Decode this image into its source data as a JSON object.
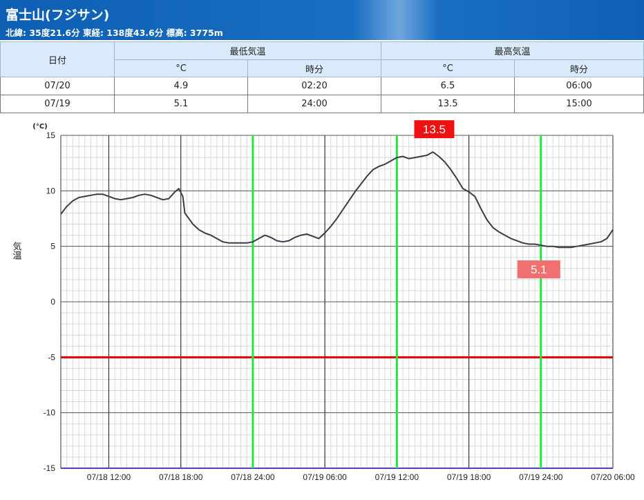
{
  "header": {
    "title": "富士山(フジサン)",
    "subtitle": "北緯: 35度21.6分 東経: 138度43.6分 標高: 3775m"
  },
  "table": {
    "date_header": "日付",
    "min_header": "最低気温",
    "max_header": "最高気温",
    "unit_c": "°C",
    "unit_time": "時分",
    "rows": [
      {
        "date": "07/20",
        "min_c": "4.9",
        "min_time": "02:20",
        "max_c": "6.5",
        "max_time": "06:00"
      },
      {
        "date": "07/19",
        "min_c": "5.1",
        "min_time": "24:00",
        "max_c": "13.5",
        "max_time": "15:00"
      }
    ]
  },
  "chart_data": {
    "type": "line",
    "ylabel": "気温",
    "yunit": "(°C)",
    "ylim": [
      -15,
      15
    ],
    "y_ticks": [
      15,
      10,
      5,
      0,
      -5,
      -10,
      -15
    ],
    "xlim": [
      "07/18 08:00",
      "07/20 06:00"
    ],
    "x_ticks": [
      "07/18 12:00",
      "07/18 18:00",
      "07/18 24:00",
      "07/19 06:00",
      "07/19 12:00",
      "07/19 18:00",
      "07/19 24:00",
      "07/20 06:00"
    ],
    "day_marker_lines": [
      "07/18 24:00",
      "07/19 12:00",
      "07/19 24:00"
    ],
    "reference_line": {
      "y": -5,
      "color": "#e00000"
    },
    "bottom_line_color": "#4a3ae0",
    "marker_line_color": "#22e63a",
    "annotations": [
      {
        "label": "13.5",
        "x": "07/19 15:00",
        "y": 13.5,
        "color": "#ee1111"
      },
      {
        "label": "5.1",
        "x": "07/19 24:00",
        "y": 5.1,
        "color": "#f07070"
      }
    ],
    "series": [
      {
        "color": "#3a3a4a",
        "points": [
          [
            "07/18 08:00",
            7.9
          ],
          [
            "07/18 08:30",
            8.6
          ],
          [
            "07/18 09:00",
            9.1
          ],
          [
            "07/18 09:30",
            9.4
          ],
          [
            "07/18 10:00",
            9.5
          ],
          [
            "07/18 10:30",
            9.6
          ],
          [
            "07/18 11:00",
            9.7
          ],
          [
            "07/18 11:30",
            9.7
          ],
          [
            "07/18 12:00",
            9.5
          ],
          [
            "07/18 12:30",
            9.3
          ],
          [
            "07/18 13:00",
            9.2
          ],
          [
            "07/18 13:30",
            9.3
          ],
          [
            "07/18 14:00",
            9.4
          ],
          [
            "07/18 14:30",
            9.6
          ],
          [
            "07/18 15:00",
            9.7
          ],
          [
            "07/18 15:30",
            9.6
          ],
          [
            "07/18 16:00",
            9.4
          ],
          [
            "07/18 16:30",
            9.2
          ],
          [
            "07/18 17:00",
            9.3
          ],
          [
            "07/18 17:30",
            9.9
          ],
          [
            "07/18 17:50",
            10.2
          ],
          [
            "07/18 18:10",
            9.5
          ],
          [
            "07/18 18:20",
            8.0
          ],
          [
            "07/18 19:00",
            7.0
          ],
          [
            "07/18 19:30",
            6.5
          ],
          [
            "07/18 20:00",
            6.2
          ],
          [
            "07/18 20:30",
            6.0
          ],
          [
            "07/18 21:00",
            5.7
          ],
          [
            "07/18 21:30",
            5.4
          ],
          [
            "07/18 22:00",
            5.3
          ],
          [
            "07/18 22:30",
            5.3
          ],
          [
            "07/18 23:00",
            5.3
          ],
          [
            "07/18 23:30",
            5.3
          ],
          [
            "07/19 00:00",
            5.4
          ],
          [
            "07/19 00:30",
            5.7
          ],
          [
            "07/19 01:00",
            6.0
          ],
          [
            "07/19 01:30",
            5.8
          ],
          [
            "07/19 02:00",
            5.5
          ],
          [
            "07/19 02:30",
            5.4
          ],
          [
            "07/19 03:00",
            5.5
          ],
          [
            "07/19 03:30",
            5.8
          ],
          [
            "07/19 04:00",
            6.0
          ],
          [
            "07/19 04:30",
            6.1
          ],
          [
            "07/19 05:00",
            5.9
          ],
          [
            "07/19 05:30",
            5.7
          ],
          [
            "07/19 06:00",
            6.2
          ],
          [
            "07/19 06:30",
            6.8
          ],
          [
            "07/19 07:00",
            7.5
          ],
          [
            "07/19 07:30",
            8.3
          ],
          [
            "07/19 08:00",
            9.1
          ],
          [
            "07/19 08:30",
            9.9
          ],
          [
            "07/19 09:00",
            10.6
          ],
          [
            "07/19 09:30",
            11.3
          ],
          [
            "07/19 10:00",
            11.9
          ],
          [
            "07/19 10:30",
            12.2
          ],
          [
            "07/19 11:00",
            12.4
          ],
          [
            "07/19 11:30",
            12.7
          ],
          [
            "07/19 12:00",
            13.0
          ],
          [
            "07/19 12:30",
            13.1
          ],
          [
            "07/19 13:00",
            12.9
          ],
          [
            "07/19 13:30",
            13.0
          ],
          [
            "07/19 14:00",
            13.1
          ],
          [
            "07/19 14:30",
            13.2
          ],
          [
            "07/19 15:00",
            13.5
          ],
          [
            "07/19 15:30",
            13.1
          ],
          [
            "07/19 16:00",
            12.6
          ],
          [
            "07/19 16:30",
            11.9
          ],
          [
            "07/19 17:00",
            11.1
          ],
          [
            "07/19 17:30",
            10.2
          ],
          [
            "07/19 18:00",
            9.9
          ],
          [
            "07/19 18:30",
            9.5
          ],
          [
            "07/19 19:00",
            8.4
          ],
          [
            "07/19 19:30",
            7.4
          ],
          [
            "07/19 20:00",
            6.7
          ],
          [
            "07/19 20:30",
            6.3
          ],
          [
            "07/19 21:00",
            6.0
          ],
          [
            "07/19 21:30",
            5.7
          ],
          [
            "07/19 22:00",
            5.5
          ],
          [
            "07/19 22:30",
            5.3
          ],
          [
            "07/19 23:00",
            5.2
          ],
          [
            "07/19 23:30",
            5.2
          ],
          [
            "07/20 00:00",
            5.1
          ],
          [
            "07/20 00:30",
            5.0
          ],
          [
            "07/20 01:00",
            5.0
          ],
          [
            "07/20 01:30",
            4.9
          ],
          [
            "07/20 02:00",
            4.9
          ],
          [
            "07/20 02:30",
            4.9
          ],
          [
            "07/20 03:00",
            5.0
          ],
          [
            "07/20 03:30",
            5.1
          ],
          [
            "07/20 04:00",
            5.2
          ],
          [
            "07/20 04:30",
            5.3
          ],
          [
            "07/20 05:00",
            5.4
          ],
          [
            "07/20 05:30",
            5.7
          ],
          [
            "07/20 06:00",
            6.5
          ]
        ]
      }
    ]
  }
}
